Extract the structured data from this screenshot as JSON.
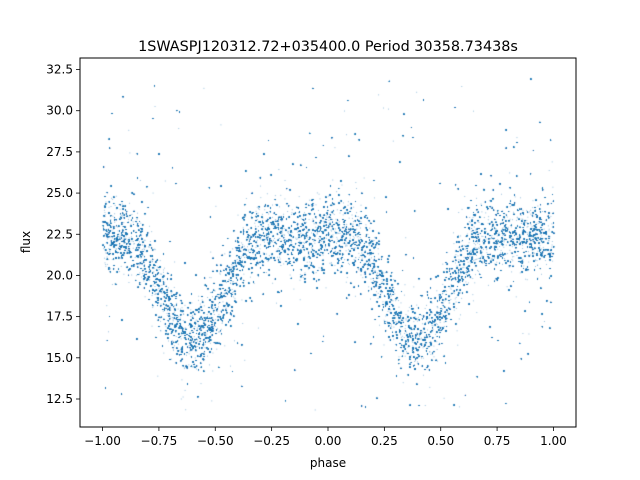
{
  "chart_data": {
    "type": "scatter",
    "title": "1SWASPJ120312.72+035400.0 Period 30358.73438s",
    "xlabel": "phase",
    "ylabel": "flux",
    "xlim": [
      -1.1,
      1.1
    ],
    "ylim": [
      10.8,
      33.2
    ],
    "xticks": [
      -1.0,
      -0.75,
      -0.5,
      -0.25,
      0.0,
      0.25,
      0.5,
      0.75,
      1.0
    ],
    "xtick_labels": [
      "−1.00",
      "−0.75",
      "−0.50",
      "−0.25",
      "0.00",
      "0.25",
      "0.50",
      "0.75",
      "1.00"
    ],
    "yticks": [
      12.5,
      15.0,
      17.5,
      20.0,
      22.5,
      25.0,
      27.5,
      30.0,
      32.5
    ],
    "ytick_labels": [
      "12.5",
      "15.0",
      "17.5",
      "20.0",
      "22.5",
      "25.0",
      "27.5",
      "30.0",
      "32.5"
    ],
    "grid": false,
    "marker_color": "#1f77b4",
    "light_curve": {
      "phase_range": [
        -1.0,
        1.0
      ],
      "baseline_flux": 22.3,
      "eclipse_centers": [
        -0.6,
        0.4
      ],
      "eclipse_min_flux": 16.3,
      "eclipse_half_width": 0.28,
      "scatter_spread": 1.3,
      "outlier_range": [
        11.8,
        32.0
      ]
    }
  }
}
